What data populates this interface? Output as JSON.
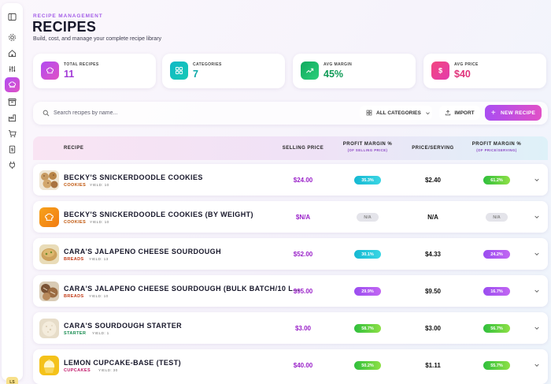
{
  "header": {
    "eyebrow": "RECIPE MANAGEMENT",
    "title": "RECIPES",
    "subtitle": "Build, cost, and manage your complete recipe library"
  },
  "sidebar": {
    "icons": [
      "panel-toggle-icon",
      "gear-icon",
      "home-icon",
      "sliders-icon",
      "chef-hat-icon",
      "inventory-box-icon",
      "factory-icon",
      "cart-icon",
      "receipt-icon",
      "plug-icon"
    ],
    "active": "chef-hat-icon",
    "user_initials": "LS"
  },
  "stats": [
    {
      "label": "TOTAL RECIPES",
      "value": "11",
      "icon": "chef-hat-icon",
      "color": "#b14cf2"
    },
    {
      "label": "CATEGORIES",
      "value": "7",
      "icon": "grid-icon",
      "color": "#12bcc4"
    },
    {
      "label": "AVG MARGIN",
      "value": "45%",
      "icon": "trending-up-icon",
      "color": "#17b36a"
    },
    {
      "label": "AVG PRICE",
      "value": "$40",
      "icon": "dollar-icon",
      "color": "#ef4b8a"
    }
  ],
  "toolbar": {
    "search_placeholder": "Search recipes by name...",
    "category_label": "ALL CATEGORIES",
    "import_label": "IMPORT",
    "new_label": "NEW RECIPE"
  },
  "table": {
    "columns": {
      "recipe": "RECIPE",
      "selling_price": "SELLING PRICE",
      "margin": "PROFIT MARGIN %",
      "margin_sub": "(OF SELLING PRICE)",
      "price_serving": "PRICE/SERVING",
      "margin2": "PROFIT MARGIN %",
      "margin2_sub": "(OF PRICE/SERVING)"
    },
    "rows": [
      {
        "name": "BECKY'S SNICKERDOODLE COOKIES",
        "category": "COOKIES",
        "yield": "YIELD: 10",
        "price": "$24.00",
        "margin": "35.3%",
        "serving": "$2.40",
        "margin2": "61.2%",
        "thumb": "cookies-photo"
      },
      {
        "name": "BECKY'S SNICKERDOODLE COOKIES (BY WEIGHT)",
        "category": "COOKIES",
        "yield": "YIELD: 10",
        "price": "$N/A",
        "margin": "N/A",
        "serving": "N/A",
        "margin2": "N/A",
        "thumb": "chef-hat-icon"
      },
      {
        "name": "CARA'S JALAPENO CHEESE SOURDOUGH",
        "category": "BREADS",
        "yield": "YIELD: 13",
        "price": "$52.00",
        "margin": "30.1%",
        "serving": "$4.33",
        "margin2": "24.2%",
        "thumb": "bread-photo"
      },
      {
        "name": "CARA'S JALAPENO CHEESE SOURDOUGH (BULK BATCH/10 L...",
        "category": "BREADS",
        "yield": "YIELD: 10",
        "price": "$95.00",
        "margin": "29.9%",
        "serving": "$9.50",
        "margin2": "16.7%",
        "thumb": "bread-loaves-photo"
      },
      {
        "name": "CARA'S SOURDOUGH STARTER",
        "category": "STARTER",
        "yield": "YIELD: 1",
        "price": "$3.00",
        "margin": "58.7%",
        "serving": "$3.00",
        "margin2": "56.7%",
        "thumb": "starter-photo"
      },
      {
        "name": "LEMON CUPCAKE-BASE (TEST)",
        "category": "CUPCAKES",
        "yield": "YIELD: 30",
        "price": "$40.00",
        "margin": "50.2%",
        "serving": "$1.11",
        "margin2": "55.7%",
        "thumb": "cupcake-photo"
      }
    ]
  },
  "colors": {
    "accent": "#b14cf2",
    "accent2": "#e052c4",
    "cookies": "#c0560b",
    "breads": "#c23b16",
    "starter": "#138a4d",
    "cupcakes": "#c2186b"
  }
}
